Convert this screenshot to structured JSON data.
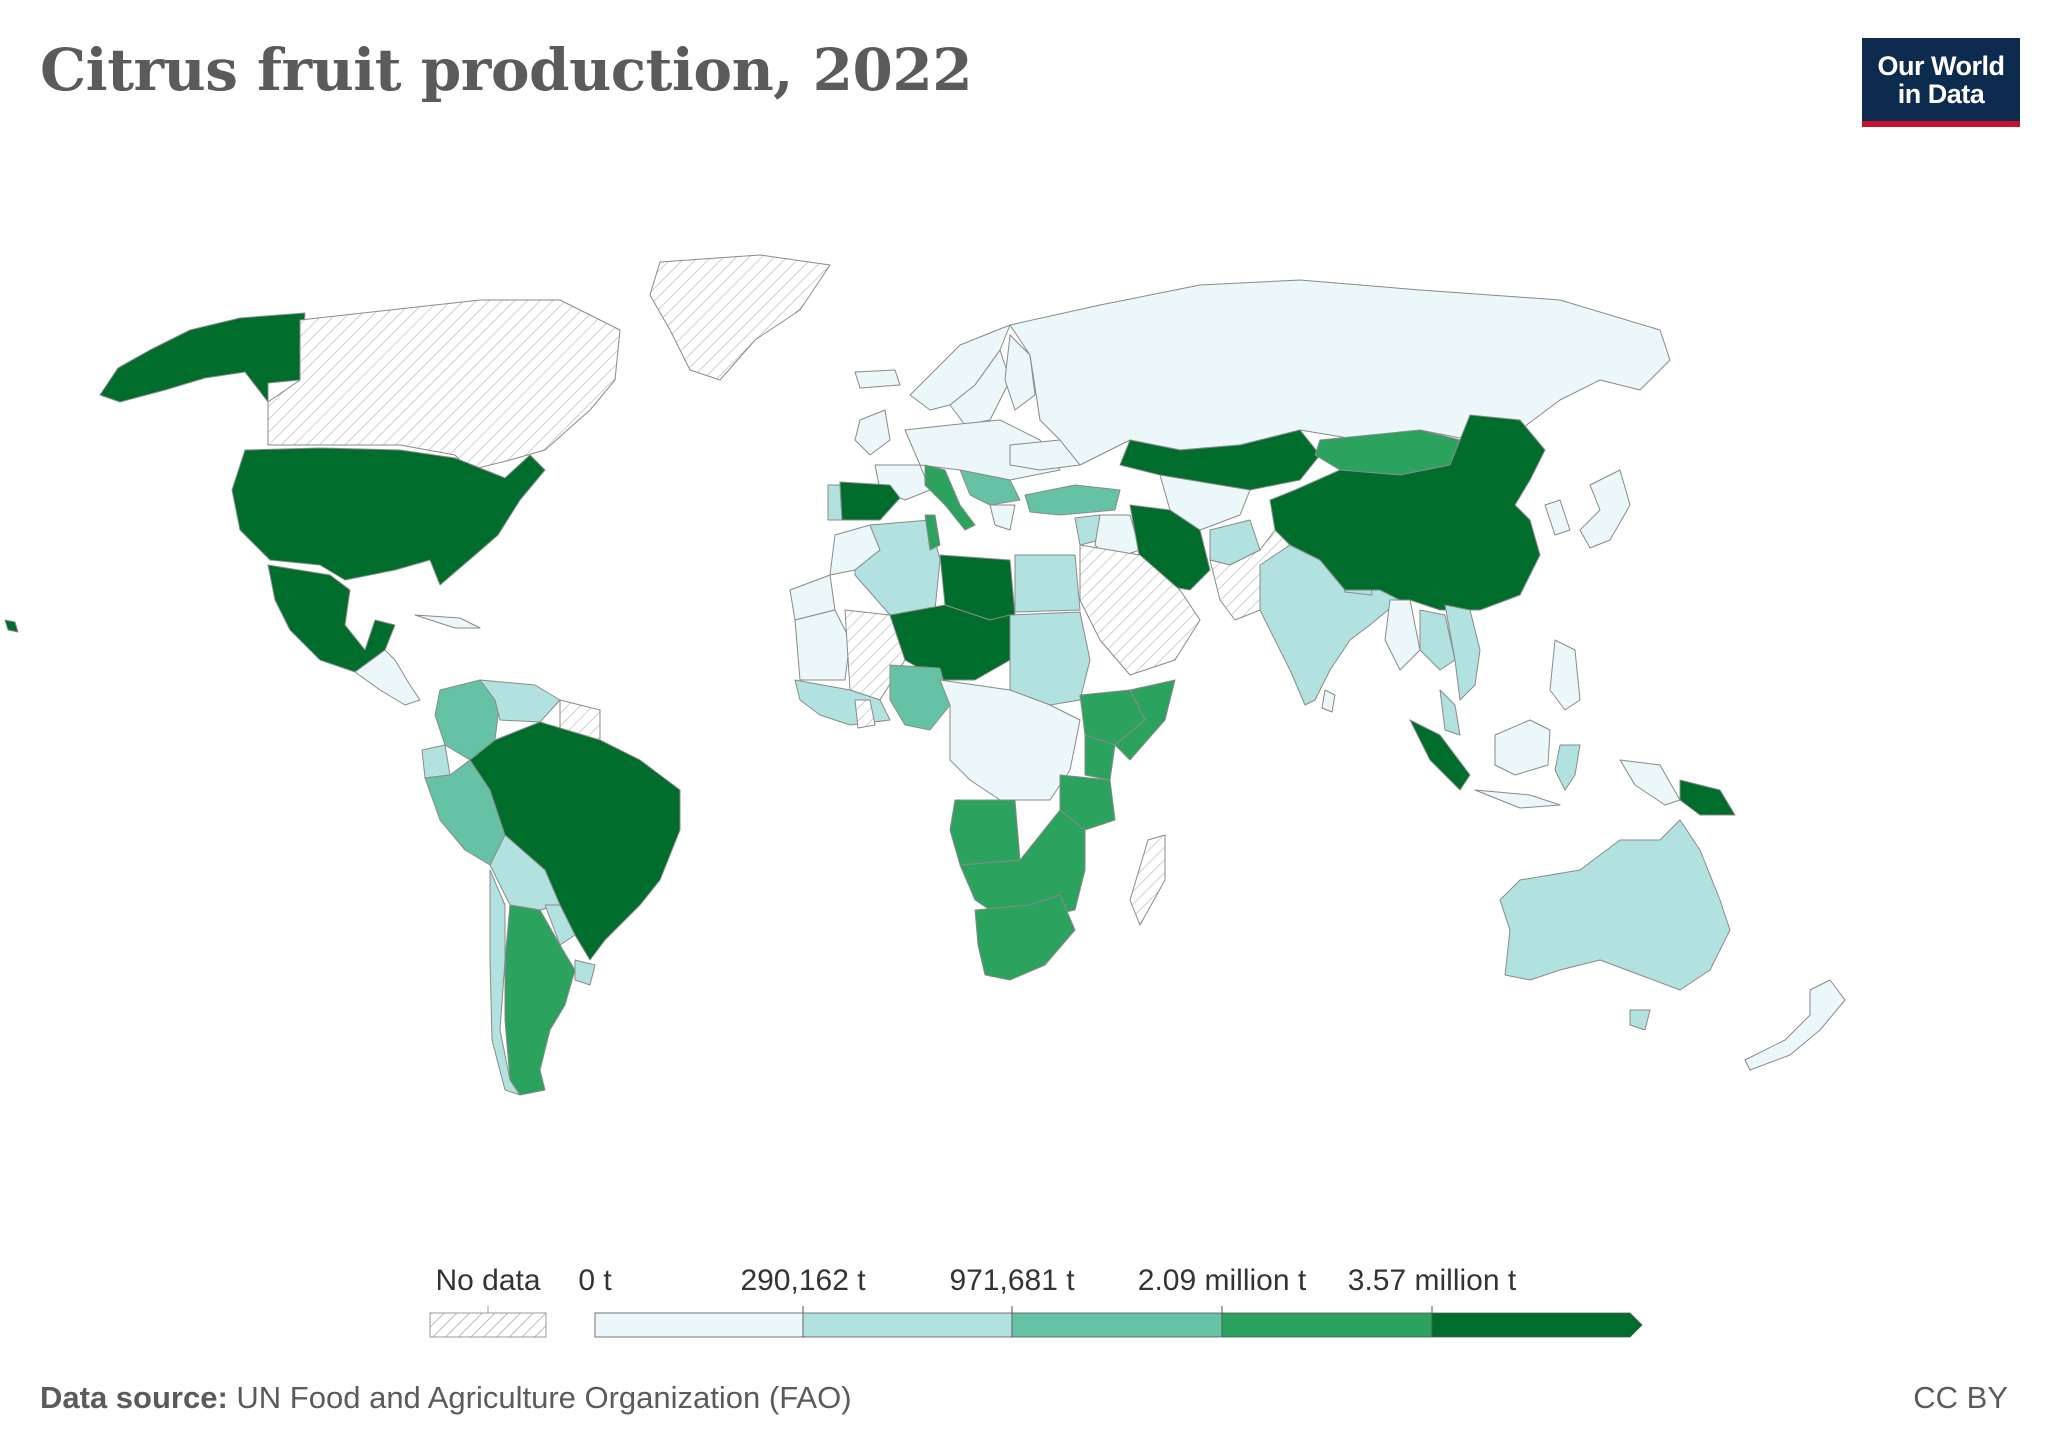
{
  "title": "Citrus fruit production, 2022",
  "logo": {
    "line1": "Our World",
    "line2": "in Data",
    "bg": "#0d2a4f",
    "accent": "#c8102e"
  },
  "legend": {
    "no_data_label": "No data",
    "thresholds": [
      "0 t",
      "290,162 t",
      "971,681 t",
      "2.09 million t",
      "3.57 million t"
    ],
    "colors": [
      "#ebf7f8",
      "#b2e2e0",
      "#66c2a4",
      "#2ca25f",
      "#006d2c"
    ],
    "no_data_color": "#d9d9d9"
  },
  "footer": {
    "source_label": "Data source:",
    "source_text": "UN Food and Agriculture Organization (FAO)",
    "license": "CC BY"
  },
  "map_regions": [
    {
      "name": "Alaska (USA)",
      "bin": 4
    },
    {
      "name": "Canada",
      "bin": -1
    },
    {
      "name": "Greenland",
      "bin": -1
    },
    {
      "name": "United States",
      "bin": 4
    },
    {
      "name": "Mexico",
      "bin": 4
    },
    {
      "name": "Central America",
      "bin": 0
    },
    {
      "name": "Cuba",
      "bin": 0
    },
    {
      "name": "Colombia",
      "bin": 2
    },
    {
      "name": "Venezuela",
      "bin": 1
    },
    {
      "name": "Guianas",
      "bin": -1
    },
    {
      "name": "Ecuador",
      "bin": 1
    },
    {
      "name": "Peru",
      "bin": 2
    },
    {
      "name": "Brazil",
      "bin": 4
    },
    {
      "name": "Bolivia",
      "bin": 1
    },
    {
      "name": "Paraguay",
      "bin": 1
    },
    {
      "name": "Chile",
      "bin": 1
    },
    {
      "name": "Argentina",
      "bin": 3
    },
    {
      "name": "Uruguay",
      "bin": 1
    },
    {
      "name": "Iceland",
      "bin": 0
    },
    {
      "name": "Norway",
      "bin": 0
    },
    {
      "name": "Sweden",
      "bin": 0
    },
    {
      "name": "Finland",
      "bin": 0
    },
    {
      "name": "United Kingdom",
      "bin": 0
    },
    {
      "name": "Central Europe",
      "bin": 0
    },
    {
      "name": "France",
      "bin": 0
    },
    {
      "name": "Portugal",
      "bin": 1
    },
    {
      "name": "Spain",
      "bin": 4
    },
    {
      "name": "Italy",
      "bin": 3
    },
    {
      "name": "Greece",
      "bin": 2
    },
    {
      "name": "Balkans",
      "bin": 0
    },
    {
      "name": "Ukraine",
      "bin": 0
    },
    {
      "name": "Russia",
      "bin": 0
    },
    {
      "name": "Turkey",
      "bin": 4
    },
    {
      "name": "Morocco",
      "bin": 3
    },
    {
      "name": "Algeria",
      "bin": 2
    },
    {
      "name": "Tunisia",
      "bin": 1
    },
    {
      "name": "Libya",
      "bin": 0
    },
    {
      "name": "Egypt",
      "bin": 4
    },
    {
      "name": "Western Sahara",
      "bin": -1
    },
    {
      "name": "Mauritania",
      "bin": 0
    },
    {
      "name": "Mali",
      "bin": 1
    },
    {
      "name": "Niger / Chad region",
      "bin": -1
    },
    {
      "name": "Sudan",
      "bin": 1
    },
    {
      "name": "West Africa",
      "bin": 0
    },
    {
      "name": "Ghana",
      "bin": 1
    },
    {
      "name": "Nigeria",
      "bin": 4
    },
    {
      "name": "Ethiopia",
      "bin": 0
    },
    {
      "name": "Somalia",
      "bin": 0
    },
    {
      "name": "Central Africa",
      "bin": 0
    },
    {
      "name": "Kenya",
      "bin": 1
    },
    {
      "name": "Tanzania",
      "bin": 1
    },
    {
      "name": "Angola",
      "bin": 1
    },
    {
      "name": "Southern Africa",
      "bin": 0
    },
    {
      "name": "South Africa",
      "bin": 4
    },
    {
      "name": "Madagascar",
      "bin": 0
    },
    {
      "name": "Saudi Arabia",
      "bin": 0
    },
    {
      "name": "Syria",
      "bin": 1
    },
    {
      "name": "Iraq",
      "bin": 0
    },
    {
      "name": "Iran",
      "bin": 4
    },
    {
      "name": "Central Asia",
      "bin": 0
    },
    {
      "name": "Kazakhstan",
      "bin": 0
    },
    {
      "name": "Afghanistan",
      "bin": 1
    },
    {
      "name": "Pakistan",
      "bin": 3
    },
    {
      "name": "India",
      "bin": 4
    },
    {
      "name": "Bangladesh",
      "bin": 1
    },
    {
      "name": "Sri Lanka",
      "bin": 0
    },
    {
      "name": "Mongolia",
      "bin": -1
    },
    {
      "name": "China",
      "bin": 4
    },
    {
      "name": "Korea",
      "bin": 1
    },
    {
      "name": "Japan",
      "bin": 1
    },
    {
      "name": "Myanmar",
      "bin": -1
    },
    {
      "name": "Thailand",
      "bin": 2
    },
    {
      "name": "Vietnam",
      "bin": 3
    },
    {
      "name": "Malaysia",
      "bin": 3
    },
    {
      "name": "Philippines",
      "bin": 0
    },
    {
      "name": "Sumatra",
      "bin": 3
    },
    {
      "name": "Java",
      "bin": 3
    },
    {
      "name": "Borneo",
      "bin": 3
    },
    {
      "name": "Sulawesi",
      "bin": 3
    },
    {
      "name": "New Guinea (west)",
      "bin": 3
    },
    {
      "name": "Papua New Guinea",
      "bin": -1
    },
    {
      "name": "Australia",
      "bin": 1
    },
    {
      "name": "Tasmania",
      "bin": 1
    },
    {
      "name": "New Zealand",
      "bin": 0
    },
    {
      "name": "Hawaii (USA)",
      "bin": 4
    }
  ]
}
